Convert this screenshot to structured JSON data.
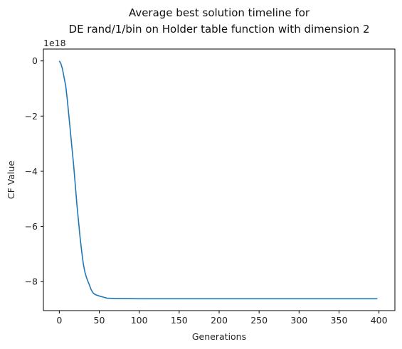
{
  "chart_data": {
    "type": "line",
    "title_lines": [
      "Average best solution timeline for",
      "DE rand/1/bin on Holder table function with dimension 2"
    ],
    "xlabel": "Generations",
    "ylabel": "CF Value",
    "y_offset_label": "1e18",
    "xlim": [
      -19.9,
      419.9
    ],
    "ylim": [
      -9.05,
      0.43
    ],
    "x_ticks": [
      0,
      50,
      100,
      150,
      200,
      250,
      300,
      350,
      400
    ],
    "y_ticks": [
      0,
      -2,
      -4,
      -6,
      -8
    ],
    "grid": false,
    "series": [
      {
        "color": "#1f77b4",
        "x": [
          0,
          2,
          4,
          6,
          8,
          10,
          12,
          14,
          16,
          18,
          20,
          22,
          24,
          26,
          28,
          30,
          32,
          34,
          36,
          38,
          40,
          42,
          44,
          46,
          48,
          50,
          55,
          60,
          70,
          80,
          100,
          150,
          200,
          250,
          300,
          350,
          398
        ],
        "y": [
          0,
          -0.1,
          -0.3,
          -0.6,
          -0.9,
          -1.4,
          -2.0,
          -2.6,
          -3.2,
          -3.8,
          -4.5,
          -5.2,
          -5.8,
          -6.4,
          -6.9,
          -7.35,
          -7.65,
          -7.85,
          -8.0,
          -8.15,
          -8.3,
          -8.4,
          -8.45,
          -8.48,
          -8.5,
          -8.52,
          -8.56,
          -8.6,
          -8.61,
          -8.615,
          -8.62,
          -8.62,
          -8.62,
          -8.62,
          -8.62,
          -8.62,
          -8.62
        ]
      }
    ]
  }
}
